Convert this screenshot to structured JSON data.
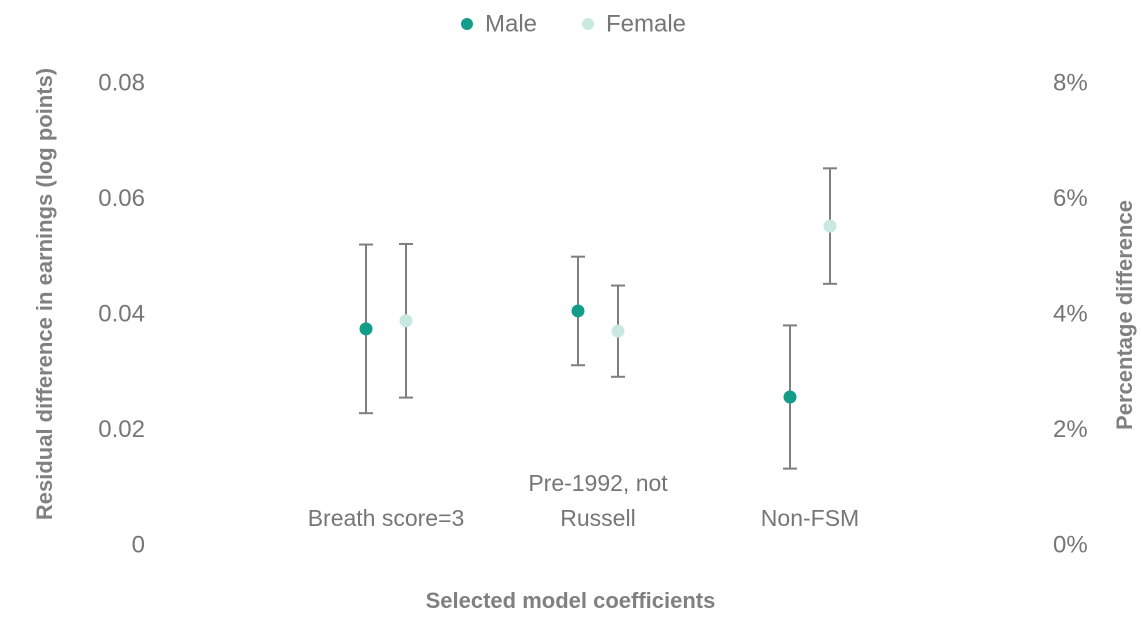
{
  "chart_data": {
    "type": "errorbar",
    "categories": [
      "Breath score=3",
      "Pre-1992, not Russell",
      "Non-FSM"
    ],
    "series": [
      {
        "name": "Male",
        "color": "#139d89",
        "values": [
          0.0376,
          0.0407,
          0.0258
        ],
        "errors": [
          0.0146,
          0.0094,
          0.0124
        ]
      },
      {
        "name": "Female",
        "color": "#c8e8e1",
        "values": [
          0.039,
          0.0372,
          0.0554
        ],
        "errors": [
          0.0133,
          0.0079,
          0.01
        ]
      }
    ],
    "ylim": [
      0,
      0.08
    ],
    "yticks": [
      0,
      0.02,
      0.04,
      0.06,
      0.08
    ],
    "y2lim": [
      0,
      8
    ],
    "y2ticks": [
      {
        "value": 0,
        "label": "0%"
      },
      {
        "value": 2,
        "label": "2%"
      },
      {
        "value": 4,
        "label": "4%"
      },
      {
        "value": 6,
        "label": "6%"
      },
      {
        "value": 8,
        "label": "8%"
      }
    ],
    "ylabel": "Residual difference in earnings (log points)",
    "y2label": "Percentage difference",
    "xlabel": "Selected model coefficients",
    "legend": "top",
    "errorbar_color": "#7f7f7f"
  }
}
